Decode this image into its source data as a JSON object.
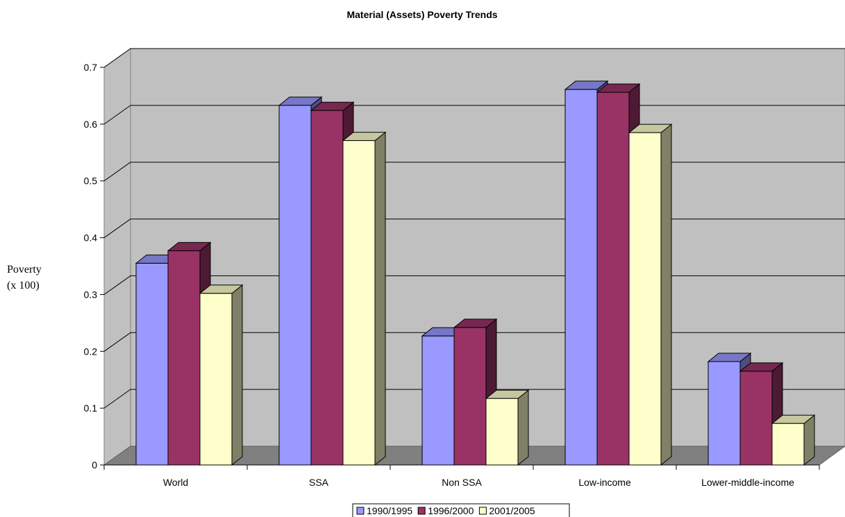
{
  "chart_data": {
    "type": "bar",
    "title": "Material (Assets) Poverty Trends",
    "ylabel_lines": [
      "Poverty",
      "(x 100)"
    ],
    "xlabel": "",
    "categories": [
      "World",
      "SSA",
      "Non SSA",
      "Low-income",
      "Lower-middle-income"
    ],
    "series": [
      {
        "name": "1990/1995",
        "values": [
          0.355,
          0.633,
          0.227,
          0.661,
          0.182
        ],
        "color": "#9999ff"
      },
      {
        "name": "1996/2000",
        "values": [
          0.377,
          0.624,
          0.242,
          0.656,
          0.165
        ],
        "color": "#993366"
      },
      {
        "name": "2001/2005",
        "values": [
          0.302,
          0.571,
          0.117,
          0.585,
          0.073
        ],
        "color": "#ffffcc"
      }
    ],
    "ylim": [
      0,
      0.7
    ],
    "yticks": [
      "0",
      "0.1",
      "0.2",
      "0.3",
      "0.4",
      "0.5",
      "0.6",
      "0.7"
    ],
    "grid": true,
    "style": "3d-clustered-column",
    "legend_position": "bottom"
  }
}
